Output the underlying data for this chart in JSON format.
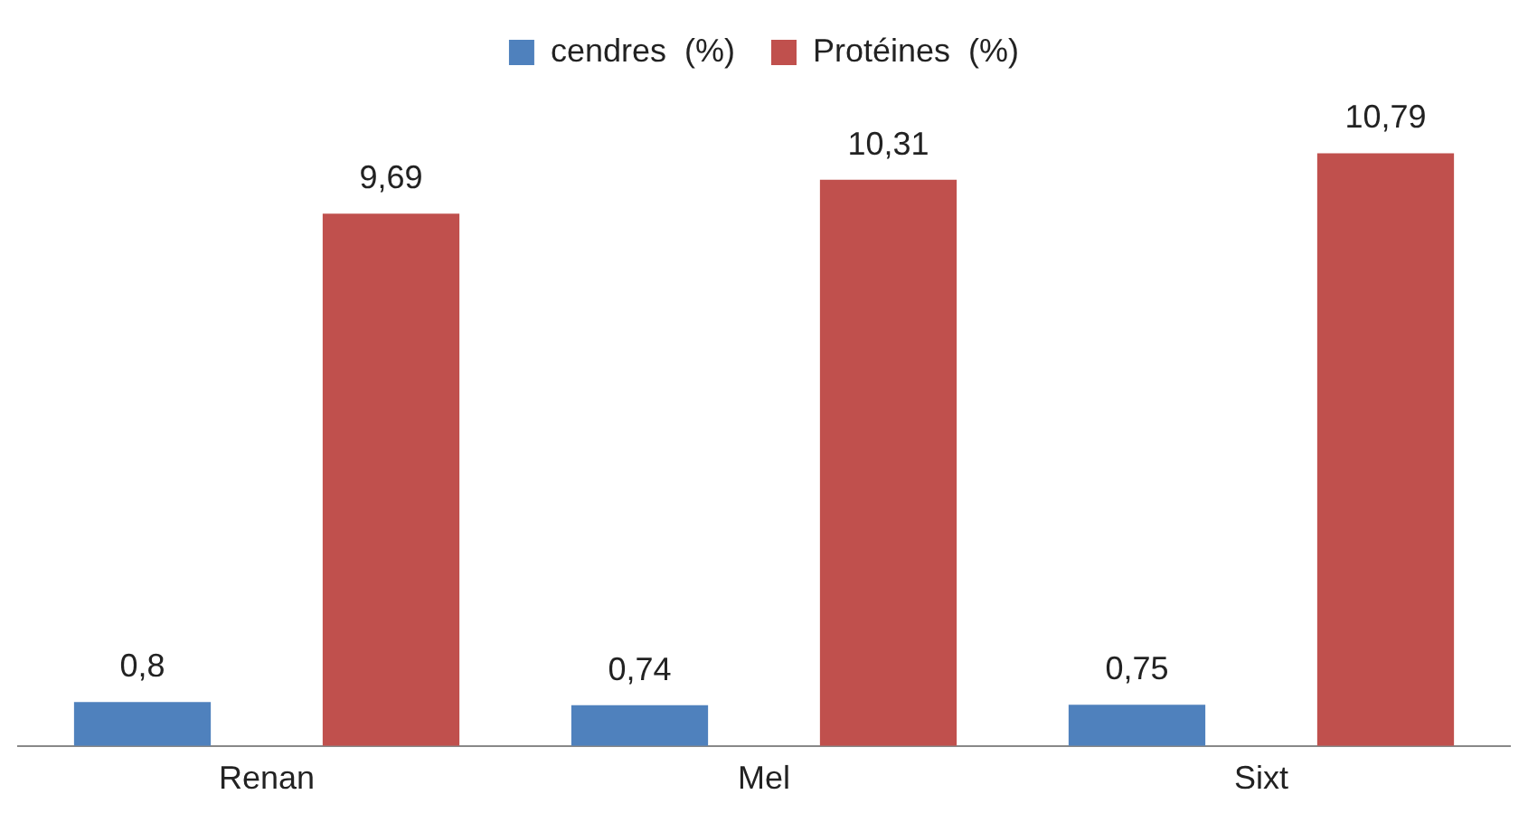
{
  "chart_data": {
    "type": "bar",
    "categories": [
      "Renan",
      "Mel",
      "Sixt"
    ],
    "series": [
      {
        "name": "cendres  (%)",
        "color": "#4f81bd",
        "values": [
          0.8,
          0.74,
          0.75
        ],
        "value_labels": [
          "0,8",
          "0,74",
          "0,75"
        ]
      },
      {
        "name": "Protéines  (%)",
        "color": "#c0504d",
        "values": [
          9.69,
          10.31,
          10.79
        ],
        "value_labels": [
          "9,69",
          "10,31",
          "10,79"
        ]
      }
    ],
    "grid": false,
    "legend": "top"
  }
}
